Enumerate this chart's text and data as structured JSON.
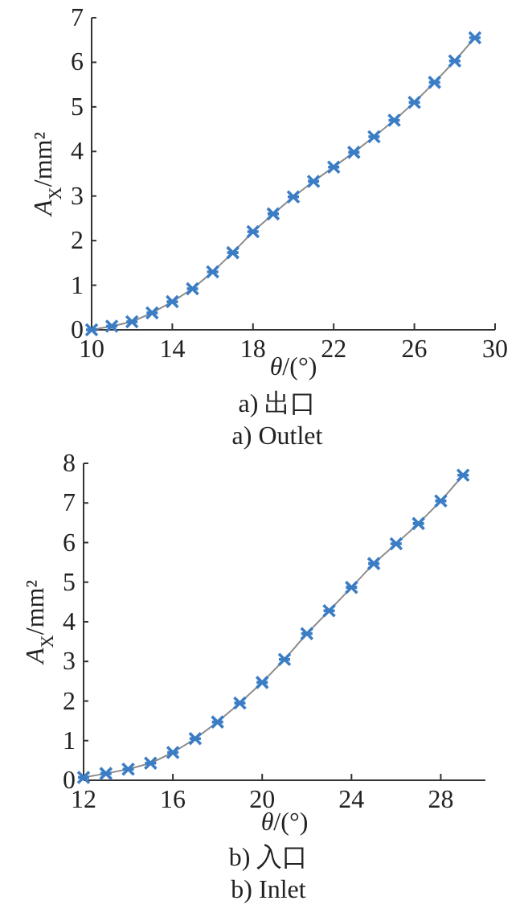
{
  "chart_data": [
    {
      "type": "line",
      "xlabel": "θ/(°)",
      "ylabel": "A$_{X}$/mm²",
      "annotations": [
        "a)  出口",
        "a)  Outlet"
      ],
      "xlim": [
        10,
        30
      ],
      "xticks": [
        10,
        14,
        18,
        22,
        26,
        30
      ],
      "ylim": [
        0,
        7
      ],
      "yticks": [
        0,
        1,
        2,
        3,
        4,
        5,
        6,
        7
      ],
      "grid": false,
      "x": [
        10,
        11,
        12,
        13,
        14,
        15,
        16,
        17,
        18,
        19,
        20,
        21,
        22,
        23,
        24,
        25,
        26,
        27,
        28,
        29
      ],
      "series": [
        {
          "color": "#8c8c8c",
          "values": [
            0,
            0.08,
            0.18,
            0.38,
            0.63,
            0.92,
            1.3,
            1.73,
            2.2,
            2.6,
            2.98,
            3.33,
            3.65,
            3.98,
            4.33,
            4.7,
            5.1,
            5.55,
            6.03,
            6.55
          ]
        },
        {
          "type": "scatter",
          "marker": "cross",
          "color": "#3b7dc4",
          "values": [
            0,
            0.08,
            0.18,
            0.38,
            0.63,
            0.92,
            1.3,
            1.73,
            2.2,
            2.6,
            2.98,
            3.33,
            3.65,
            3.98,
            4.33,
            4.7,
            5.1,
            5.55,
            6.03,
            6.55
          ]
        }
      ]
    },
    {
      "type": "line",
      "xlabel": "θ/(°)",
      "ylabel": "A$_{X}$/mm²",
      "annotations": [
        "b)  入口",
        "b)  Inlet"
      ],
      "xlim": [
        12,
        30
      ],
      "xticks": [
        12,
        16,
        20,
        24,
        28
      ],
      "ylim": [
        0,
        8
      ],
      "yticks": [
        0,
        1,
        2,
        3,
        4,
        5,
        6,
        7,
        8
      ],
      "grid": false,
      "x": [
        12,
        13,
        14,
        15,
        16,
        17,
        18,
        19,
        20,
        21,
        22,
        23,
        24,
        25,
        26,
        27,
        28,
        29
      ],
      "series": [
        {
          "color": "#8c8c8c",
          "values": [
            0.07,
            0.17,
            0.28,
            0.43,
            0.7,
            1.05,
            1.47,
            1.95,
            2.47,
            3.05,
            3.7,
            4.28,
            4.87,
            5.47,
            5.97,
            6.48,
            7.05,
            7.7
          ]
        },
        {
          "type": "scatter",
          "marker": "cross",
          "color": "#3b7dc4",
          "values": [
            0.07,
            0.17,
            0.28,
            0.43,
            0.7,
            1.05,
            1.47,
            1.95,
            2.47,
            3.05,
            3.7,
            4.28,
            4.87,
            5.47,
            5.97,
            6.48,
            7.05,
            7.7
          ]
        }
      ]
    }
  ]
}
